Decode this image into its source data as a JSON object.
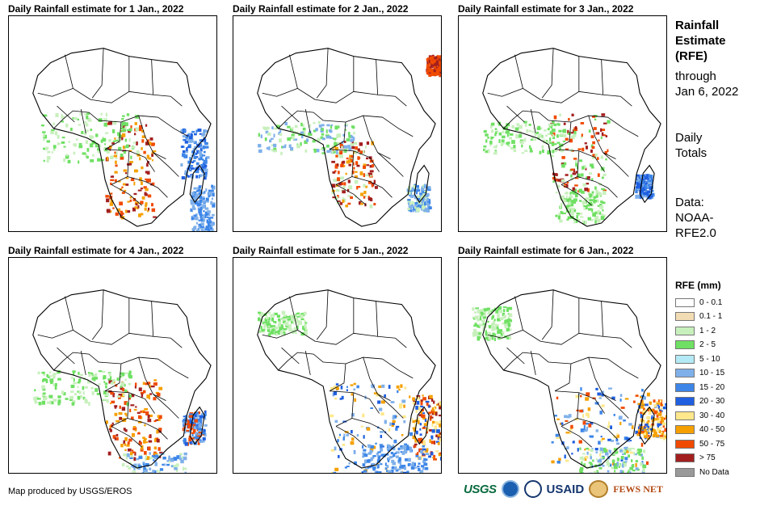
{
  "panels": [
    {
      "title": "Daily Rainfall estimate for 1 Jan., 2022"
    },
    {
      "title": "Daily Rainfall estimate for 2 Jan., 2022"
    },
    {
      "title": "Daily Rainfall estimate for 3 Jan., 2022"
    },
    {
      "title": "Daily Rainfall estimate for 4 Jan., 2022"
    },
    {
      "title": "Daily Rainfall estimate for 5 Jan., 2022"
    },
    {
      "title": "Daily Rainfall estimate for 6 Jan., 2022"
    }
  ],
  "sidebar": {
    "heading": [
      "Rainfall",
      "Estimate",
      "(RFE)"
    ],
    "through": "through",
    "date": "Jan 6, 2022",
    "totals": [
      "Daily",
      "Totals"
    ],
    "data": [
      "Data:",
      "NOAA-",
      "RFE2.0"
    ]
  },
  "legend": {
    "title": "RFE (mm)",
    "items": [
      {
        "label": "0 - 0.1",
        "color": "#ffffff"
      },
      {
        "label": "0.1 - 1",
        "color": "#f2dcb4"
      },
      {
        "label": "1 - 2",
        "color": "#c8f0bd"
      },
      {
        "label": "2 - 5",
        "color": "#6fe063"
      },
      {
        "label": "5 - 10",
        "color": "#b4eaf5"
      },
      {
        "label": "10 - 15",
        "color": "#7fb0ea"
      },
      {
        "label": "15 - 20",
        "color": "#3d86e8"
      },
      {
        "label": "20 - 30",
        "color": "#1f5fe0"
      },
      {
        "label": "30 - 40",
        "color": "#ffe88c"
      },
      {
        "label": "40 - 50",
        "color": "#f5a000"
      },
      {
        "label": "50 - 75",
        "color": "#f04a00"
      },
      {
        "label": "> 75",
        "color": "#a31f1f"
      },
      {
        "label": "No Data",
        "color": "#999999"
      }
    ]
  },
  "footer": {
    "credit": "Map produced by USGS/EROS"
  },
  "logos": {
    "usgs": "USGS",
    "usaid": "USAID",
    "fews": "FEWS NET"
  }
}
